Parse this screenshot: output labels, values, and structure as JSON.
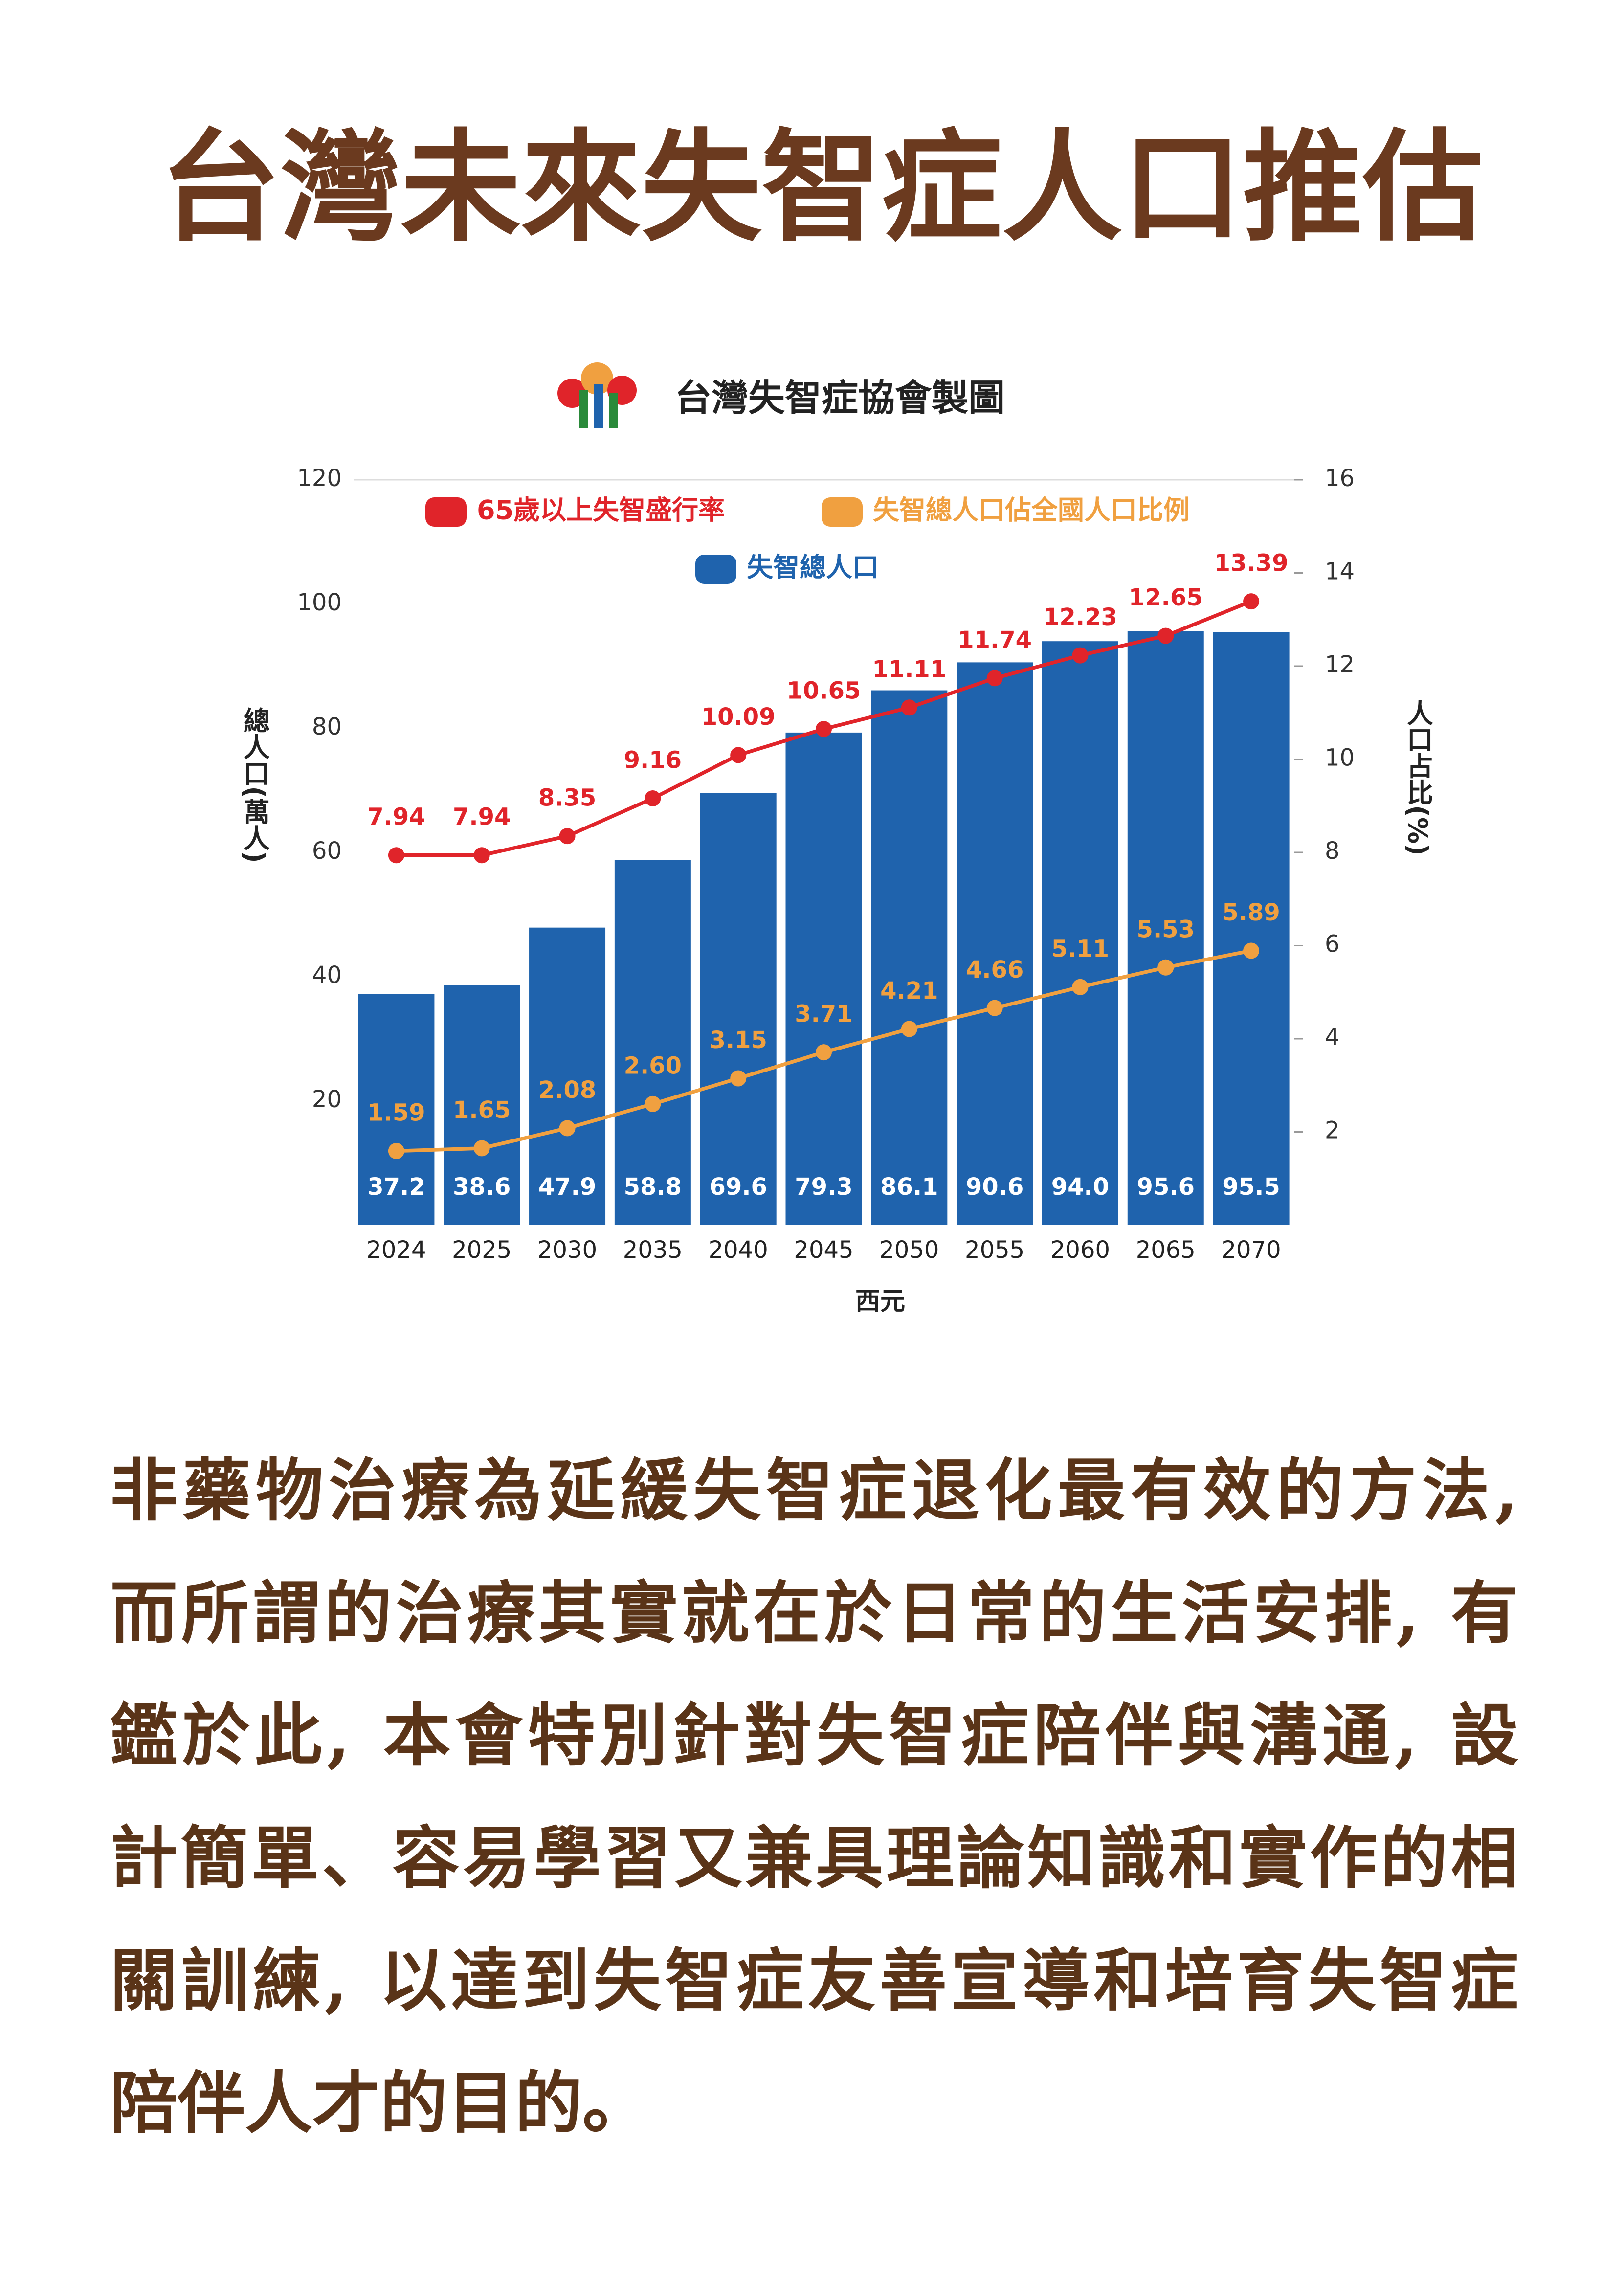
{
  "heading": "台灣未來失智症人口推估",
  "paragraph": [
    "非藥物治療為延緩失智症退化最有效的方法,",
    "而所謂的治療其實就在於日常的生活安排, 有",
    "鑑於此, 本會特別針對失智症陪伴與溝通, 設",
    "計簡單、容易學習又兼具理論知識和實作的相",
    "關訓練, 以達到失智症友善宣導和培育失智症",
    "陪伴人才的目的。"
  ],
  "chart_data": {
    "type": "bar",
    "source": "台灣失智症協會製圖",
    "xlabel": "西元",
    "ylabel": "總人口(萬人)",
    "y2label": "人口占比(%)",
    "categories": [
      "2024",
      "2025",
      "2030",
      "2035",
      "2040",
      "2045",
      "2050",
      "2055",
      "2060",
      "2065",
      "2070"
    ],
    "series": [
      {
        "name": "失智總人口",
        "type": "bar",
        "color": "#1f63ad",
        "values": [
          37.2,
          38.6,
          47.9,
          58.8,
          69.6,
          79.3,
          86.1,
          90.6,
          94,
          95.6,
          95.5
        ],
        "value_labels": [
          "37.2",
          "38.6",
          "47.9",
          "58.8",
          "69.6",
          "79.3",
          "86.1",
          "90.6",
          "94.0",
          "95.6",
          "95.5"
        ]
      },
      {
        "name": "65歲以上失智盛行率",
        "type": "line",
        "axis": "y2",
        "color": "#e0242a",
        "values": [
          7.94,
          7.94,
          8.35,
          9.16,
          10.09,
          10.65,
          11.11,
          11.74,
          12.23,
          12.65,
          13.39
        ]
      },
      {
        "name": "失智總人口佔全國人口比例",
        "type": "line",
        "axis": "y2",
        "color": "#f0a040",
        "values": [
          1.59,
          1.65,
          2.08,
          2.6,
          3.15,
          3.71,
          4.21,
          4.66,
          5.11,
          5.53,
          5.89
        ],
        "value_labels": [
          "1.59",
          "1.65",
          "2.08",
          "2.60",
          "3.15",
          "3.71",
          "4.21",
          "4.66",
          "5.11",
          "5.53",
          "5.89"
        ]
      }
    ],
    "ylim": [
      0,
      120
    ],
    "yticks": [
      20,
      40,
      60,
      80,
      100,
      120
    ],
    "y2lim": [
      0,
      16
    ],
    "y2ticks": [
      2,
      4,
      6,
      8,
      10,
      12,
      14,
      16
    ]
  }
}
